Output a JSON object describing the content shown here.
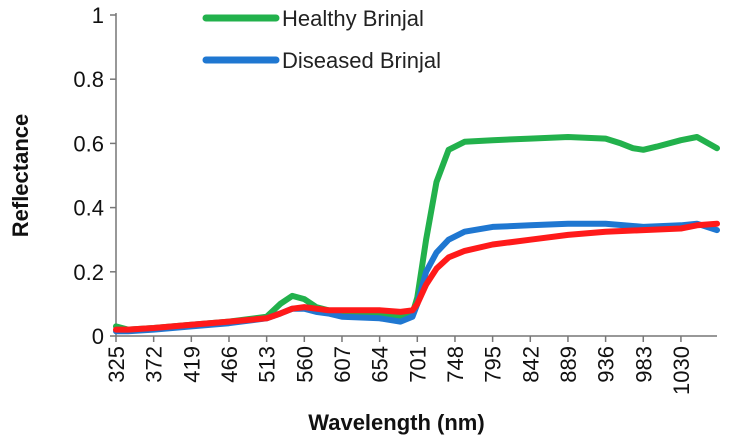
{
  "chart_data": {
    "type": "line",
    "xlabel": "Wavelength (nm)",
    "ylabel": "Reflectance",
    "x_ticks": [
      "325",
      "372",
      "419",
      "466",
      "513",
      "560",
      "607",
      "654",
      "701",
      "748",
      "795",
      "842",
      "889",
      "936",
      "983",
      "1030"
    ],
    "xlim": [
      325,
      1075
    ],
    "ylim": [
      0,
      1
    ],
    "y_ticks": [
      "0",
      "0.2",
      "0.4",
      "0.6",
      "0.8",
      "1"
    ],
    "grid": false,
    "legend_position": "top-center",
    "series": [
      {
        "name": "Healthy Brinjal",
        "color": "#22b14c",
        "x": [
          325,
          340,
          372,
          419,
          466,
          513,
          530,
          545,
          560,
          575,
          590,
          607,
          654,
          680,
          695,
          701,
          712,
          725,
          740,
          760,
          795,
          842,
          889,
          936,
          955,
          970,
          983,
          1000,
          1030,
          1050,
          1075
        ],
        "y": [
          0.03,
          0.02,
          0.025,
          0.035,
          0.045,
          0.06,
          0.1,
          0.125,
          0.115,
          0.09,
          0.08,
          0.075,
          0.07,
          0.06,
          0.07,
          0.12,
          0.3,
          0.48,
          0.58,
          0.605,
          0.61,
          0.615,
          0.62,
          0.615,
          0.6,
          0.585,
          0.58,
          0.59,
          0.61,
          0.62,
          0.585
        ]
      },
      {
        "name": "Diseased Brinjal",
        "color": "#1f77d1",
        "x": [
          325,
          340,
          372,
          419,
          466,
          513,
          530,
          545,
          560,
          575,
          590,
          607,
          654,
          680,
          695,
          701,
          712,
          725,
          740,
          760,
          795,
          842,
          889,
          936,
          983,
          1030,
          1050,
          1075
        ],
        "y": [
          0.015,
          0.015,
          0.02,
          0.03,
          0.04,
          0.055,
          0.07,
          0.085,
          0.085,
          0.075,
          0.07,
          0.06,
          0.055,
          0.045,
          0.06,
          0.1,
          0.2,
          0.26,
          0.3,
          0.325,
          0.34,
          0.345,
          0.35,
          0.35,
          0.34,
          0.345,
          0.35,
          0.33
        ]
      },
      {
        "name": "",
        "color": "#ff1a1a",
        "x": [
          325,
          340,
          372,
          419,
          466,
          513,
          530,
          545,
          560,
          575,
          590,
          607,
          654,
          680,
          695,
          701,
          712,
          725,
          740,
          760,
          795,
          842,
          889,
          936,
          983,
          1030,
          1050,
          1075
        ],
        "y": [
          0.02,
          0.02,
          0.025,
          0.035,
          0.045,
          0.055,
          0.07,
          0.085,
          0.09,
          0.085,
          0.08,
          0.08,
          0.08,
          0.075,
          0.08,
          0.1,
          0.16,
          0.21,
          0.245,
          0.265,
          0.285,
          0.3,
          0.315,
          0.325,
          0.33,
          0.335,
          0.345,
          0.35
        ]
      }
    ]
  }
}
